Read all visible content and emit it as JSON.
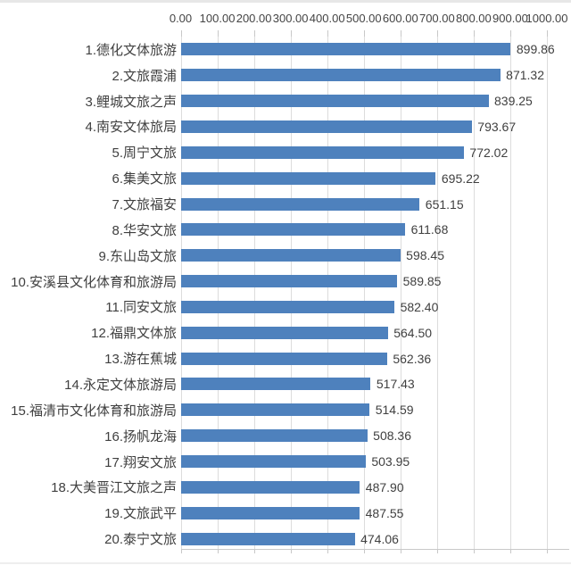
{
  "chart_data": {
    "type": "bar",
    "orientation": "horizontal",
    "title": "",
    "xlabel": "",
    "ylabel": "",
    "xlim": [
      0,
      1000
    ],
    "grid": true,
    "legend": false,
    "axis_position": "top",
    "x_tick_labels": [
      "0.00",
      "100.00",
      "200.00",
      "300.00",
      "400.00",
      "500.00",
      "600.00",
      "700.00",
      "800.00",
      "900.00",
      "1000.00"
    ],
    "items": [
      {
        "label": "1.德化文体旅游",
        "value": 899.86,
        "value_label": "899.86"
      },
      {
        "label": "2.文旅霞浦",
        "value": 871.32,
        "value_label": "871.32"
      },
      {
        "label": "3.鲤城文旅之声",
        "value": 839.25,
        "value_label": "839.25"
      },
      {
        "label": "4.南安文体旅局",
        "value": 793.67,
        "value_label": "793.67"
      },
      {
        "label": "5.周宁文旅",
        "value": 772.02,
        "value_label": "772.02"
      },
      {
        "label": "6.集美文旅",
        "value": 695.22,
        "value_label": "695.22"
      },
      {
        "label": "7.文旅福安",
        "value": 651.15,
        "value_label": "651.15"
      },
      {
        "label": "8.华安文旅",
        "value": 611.68,
        "value_label": "611.68"
      },
      {
        "label": "9.东山岛文旅",
        "value": 598.45,
        "value_label": "598.45"
      },
      {
        "label": "10.安溪县文化体育和旅游局",
        "value": 589.85,
        "value_label": "589.85"
      },
      {
        "label": "11.同安文旅",
        "value": 582.4,
        "value_label": "582.40"
      },
      {
        "label": "12.福鼎文体旅",
        "value": 564.5,
        "value_label": "564.50"
      },
      {
        "label": "13.游在蕉城",
        "value": 562.36,
        "value_label": "562.36"
      },
      {
        "label": "14.永定文体旅游局",
        "value": 517.43,
        "value_label": "517.43"
      },
      {
        "label": "15.福清市文化体育和旅游局",
        "value": 514.59,
        "value_label": "514.59"
      },
      {
        "label": "16.扬帆龙海",
        "value": 508.36,
        "value_label": "508.36"
      },
      {
        "label": "17.翔安文旅",
        "value": 503.95,
        "value_label": "503.95"
      },
      {
        "label": "18.大美晋江文旅之声",
        "value": 487.9,
        "value_label": "487.90"
      },
      {
        "label": "19.文旅武平",
        "value": 487.55,
        "value_label": "487.55"
      },
      {
        "label": "20.泰宁文旅",
        "value": 474.06,
        "value_label": "474.06"
      }
    ]
  },
  "colors": {
    "bar": "#4e81bd",
    "gridline": "#dcdcdc",
    "axis_line": "#c9c9c9",
    "text": "#404040",
    "border_line": "#e7e7e7"
  }
}
